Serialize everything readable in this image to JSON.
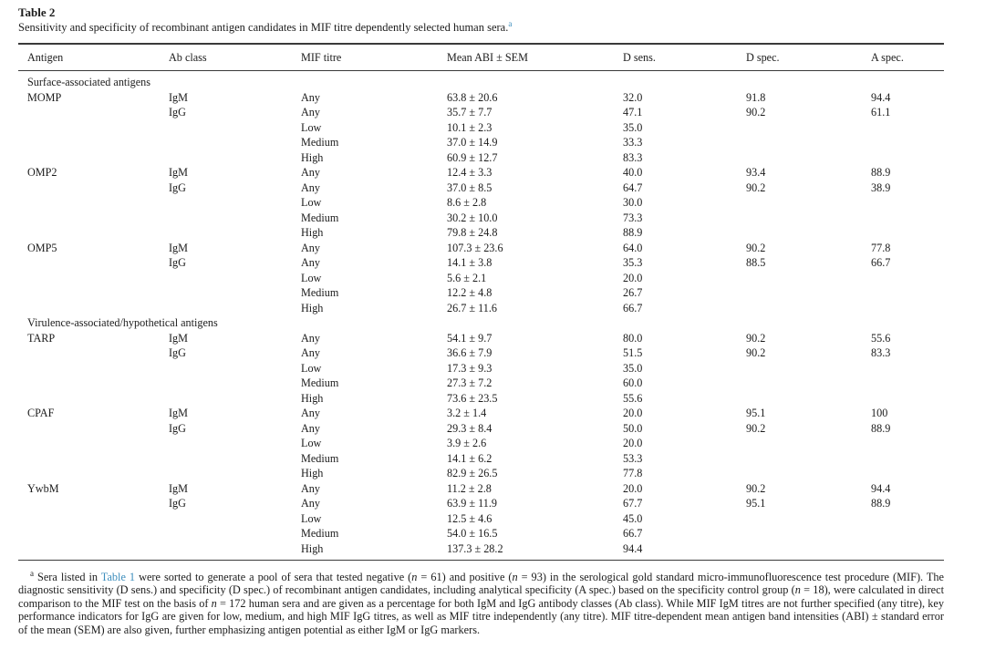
{
  "table": {
    "label": "Table 2",
    "caption": "Sensitivity and specificity of recombinant antigen candidates in MIF titre dependently selected human sera.",
    "caption_footnote_marker": "a",
    "columns": [
      "Antigen",
      "Ab class",
      "MIF titre",
      "Mean ABI ± SEM",
      "D sens.",
      "D spec.",
      "A spec."
    ],
    "sections": [
      {
        "heading": "Surface-associated antigens",
        "rows": [
          {
            "antigen": "MOMP",
            "ab_class": "IgM",
            "mif_titre": "Any",
            "mean_abi": "63.8 ± 20.6",
            "d_sens": "32.0",
            "d_spec": "91.8",
            "a_spec": "94.4"
          },
          {
            "antigen": "",
            "ab_class": "IgG",
            "mif_titre": "Any",
            "mean_abi": "35.7 ± 7.7",
            "d_sens": "47.1",
            "d_spec": "90.2",
            "a_spec": "61.1"
          },
          {
            "antigen": "",
            "ab_class": "",
            "mif_titre": "Low",
            "mean_abi": "10.1 ± 2.3",
            "d_sens": "35.0",
            "d_spec": "",
            "a_spec": ""
          },
          {
            "antigen": "",
            "ab_class": "",
            "mif_titre": "Medium",
            "mean_abi": "37.0 ± 14.9",
            "d_sens": "33.3",
            "d_spec": "",
            "a_spec": ""
          },
          {
            "antigen": "",
            "ab_class": "",
            "mif_titre": "High",
            "mean_abi": "60.9 ± 12.7",
            "d_sens": "83.3",
            "d_spec": "",
            "a_spec": ""
          },
          {
            "antigen": "OMP2",
            "ab_class": "IgM",
            "mif_titre": "Any",
            "mean_abi": "12.4 ± 3.3",
            "d_sens": "40.0",
            "d_spec": "93.4",
            "a_spec": "88.9"
          },
          {
            "antigen": "",
            "ab_class": "IgG",
            "mif_titre": "Any",
            "mean_abi": "37.0 ± 8.5",
            "d_sens": "64.7",
            "d_spec": "90.2",
            "a_spec": "38.9"
          },
          {
            "antigen": "",
            "ab_class": "",
            "mif_titre": "Low",
            "mean_abi": "8.6 ± 2.8",
            "d_sens": "30.0",
            "d_spec": "",
            "a_spec": ""
          },
          {
            "antigen": "",
            "ab_class": "",
            "mif_titre": "Medium",
            "mean_abi": "30.2 ± 10.0",
            "d_sens": "73.3",
            "d_spec": "",
            "a_spec": ""
          },
          {
            "antigen": "",
            "ab_class": "",
            "mif_titre": "High",
            "mean_abi": "79.8 ± 24.8",
            "d_sens": "88.9",
            "d_spec": "",
            "a_spec": ""
          },
          {
            "antigen": "OMP5",
            "ab_class": "IgM",
            "mif_titre": "Any",
            "mean_abi": "107.3 ± 23.6",
            "d_sens": "64.0",
            "d_spec": "90.2",
            "a_spec": "77.8"
          },
          {
            "antigen": "",
            "ab_class": "IgG",
            "mif_titre": "Any",
            "mean_abi": "14.1 ± 3.8",
            "d_sens": "35.3",
            "d_spec": "88.5",
            "a_spec": "66.7"
          },
          {
            "antigen": "",
            "ab_class": "",
            "mif_titre": "Low",
            "mean_abi": "5.6 ± 2.1",
            "d_sens": "20.0",
            "d_spec": "",
            "a_spec": ""
          },
          {
            "antigen": "",
            "ab_class": "",
            "mif_titre": "Medium",
            "mean_abi": "12.2 ± 4.8",
            "d_sens": "26.7",
            "d_spec": "",
            "a_spec": ""
          },
          {
            "antigen": "",
            "ab_class": "",
            "mif_titre": "High",
            "mean_abi": "26.7 ± 11.6",
            "d_sens": "66.7",
            "d_spec": "",
            "a_spec": ""
          }
        ]
      },
      {
        "heading": "Virulence-associated/hypothetical antigens",
        "rows": [
          {
            "antigen": "TARP",
            "ab_class": "IgM",
            "mif_titre": "Any",
            "mean_abi": "54.1 ± 9.7",
            "d_sens": "80.0",
            "d_spec": "90.2",
            "a_spec": "55.6"
          },
          {
            "antigen": "",
            "ab_class": "IgG",
            "mif_titre": "Any",
            "mean_abi": "36.6 ± 7.9",
            "d_sens": "51.5",
            "d_spec": "90.2",
            "a_spec": "83.3"
          },
          {
            "antigen": "",
            "ab_class": "",
            "mif_titre": "Low",
            "mean_abi": "17.3 ± 9.3",
            "d_sens": "35.0",
            "d_spec": "",
            "a_spec": ""
          },
          {
            "antigen": "",
            "ab_class": "",
            "mif_titre": "Medium",
            "mean_abi": "27.3 ± 7.2",
            "d_sens": "60.0",
            "d_spec": "",
            "a_spec": ""
          },
          {
            "antigen": "",
            "ab_class": "",
            "mif_titre": "High",
            "mean_abi": "73.6 ± 23.5",
            "d_sens": "55.6",
            "d_spec": "",
            "a_spec": ""
          },
          {
            "antigen": "CPAF",
            "ab_class": "IgM",
            "mif_titre": "Any",
            "mean_abi": "3.2 ± 1.4",
            "d_sens": "20.0",
            "d_spec": "95.1",
            "a_spec": "100"
          },
          {
            "antigen": "",
            "ab_class": "IgG",
            "mif_titre": "Any",
            "mean_abi": "29.3 ± 8.4",
            "d_sens": "50.0",
            "d_spec": "90.2",
            "a_spec": "88.9"
          },
          {
            "antigen": "",
            "ab_class": "",
            "mif_titre": "Low",
            "mean_abi": "3.9 ± 2.6",
            "d_sens": "20.0",
            "d_spec": "",
            "a_spec": ""
          },
          {
            "antigen": "",
            "ab_class": "",
            "mif_titre": "Medium",
            "mean_abi": "14.1 ± 6.2",
            "d_sens": "53.3",
            "d_spec": "",
            "a_spec": ""
          },
          {
            "antigen": "",
            "ab_class": "",
            "mif_titre": "High",
            "mean_abi": "82.9 ± 26.5",
            "d_sens": "77.8",
            "d_spec": "",
            "a_spec": ""
          },
          {
            "antigen": "YwbM",
            "ab_class": "IgM",
            "mif_titre": "Any",
            "mean_abi": "11.2 ± 2.8",
            "d_sens": "20.0",
            "d_spec": "90.2",
            "a_spec": "94.4"
          },
          {
            "antigen": "",
            "ab_class": "IgG",
            "mif_titre": "Any",
            "mean_abi": "63.9 ± 11.9",
            "d_sens": "67.7",
            "d_spec": "95.1",
            "a_spec": "88.9"
          },
          {
            "antigen": "",
            "ab_class": "",
            "mif_titre": "Low",
            "mean_abi": "12.5 ± 4.6",
            "d_sens": "45.0",
            "d_spec": "",
            "a_spec": ""
          },
          {
            "antigen": "",
            "ab_class": "",
            "mif_titre": "Medium",
            "mean_abi": "54.0 ± 16.5",
            "d_sens": "66.7",
            "d_spec": "",
            "a_spec": ""
          },
          {
            "antigen": "",
            "ab_class": "",
            "mif_titre": "High",
            "mean_abi": "137.3 ± 28.2",
            "d_sens": "94.4",
            "d_spec": "",
            "a_spec": ""
          }
        ]
      }
    ]
  },
  "footnote": {
    "marker": "a",
    "segments": [
      {
        "text": "Sera listed in ",
        "style": "normal"
      },
      {
        "text": "Table 1",
        "style": "link"
      },
      {
        "text": " were sorted to generate a pool of sera that tested negative (",
        "style": "normal"
      },
      {
        "text": "n",
        "style": "italic"
      },
      {
        "text": " = 61) and positive (",
        "style": "normal"
      },
      {
        "text": "n",
        "style": "italic"
      },
      {
        "text": " = 93) in the serological gold standard micro-immunofluorescence test procedure (MIF). The diagnostic sensitivity (D sens.) and specificity (D spec.) of recombinant antigen candidates, including analytical specificity (A spec.) based on the specificity control group (",
        "style": "normal"
      },
      {
        "text": "n",
        "style": "italic"
      },
      {
        "text": " = 18), were calculated in direct comparison to the MIF test on the basis of ",
        "style": "normal"
      },
      {
        "text": "n",
        "style": "italic"
      },
      {
        "text": " = 172 human sera and are given as a percentage for both IgM and IgG antibody classes (Ab class). While MIF IgM titres are not further specified (any titre), key performance indicators for IgG are given for low, medium, and high MIF IgG titres, as well as MIF titre independently (any titre). MIF titre-dependent mean antigen band intensities (ABI) ± standard error of the mean (SEM) are also given, further emphasizing antigen potential as either IgM or IgG markers.",
        "style": "normal"
      }
    ]
  },
  "colors": {
    "link_blue": "#3c8dbc",
    "rule_dark": "#3a3a3a",
    "text": "#1c1c1c"
  }
}
